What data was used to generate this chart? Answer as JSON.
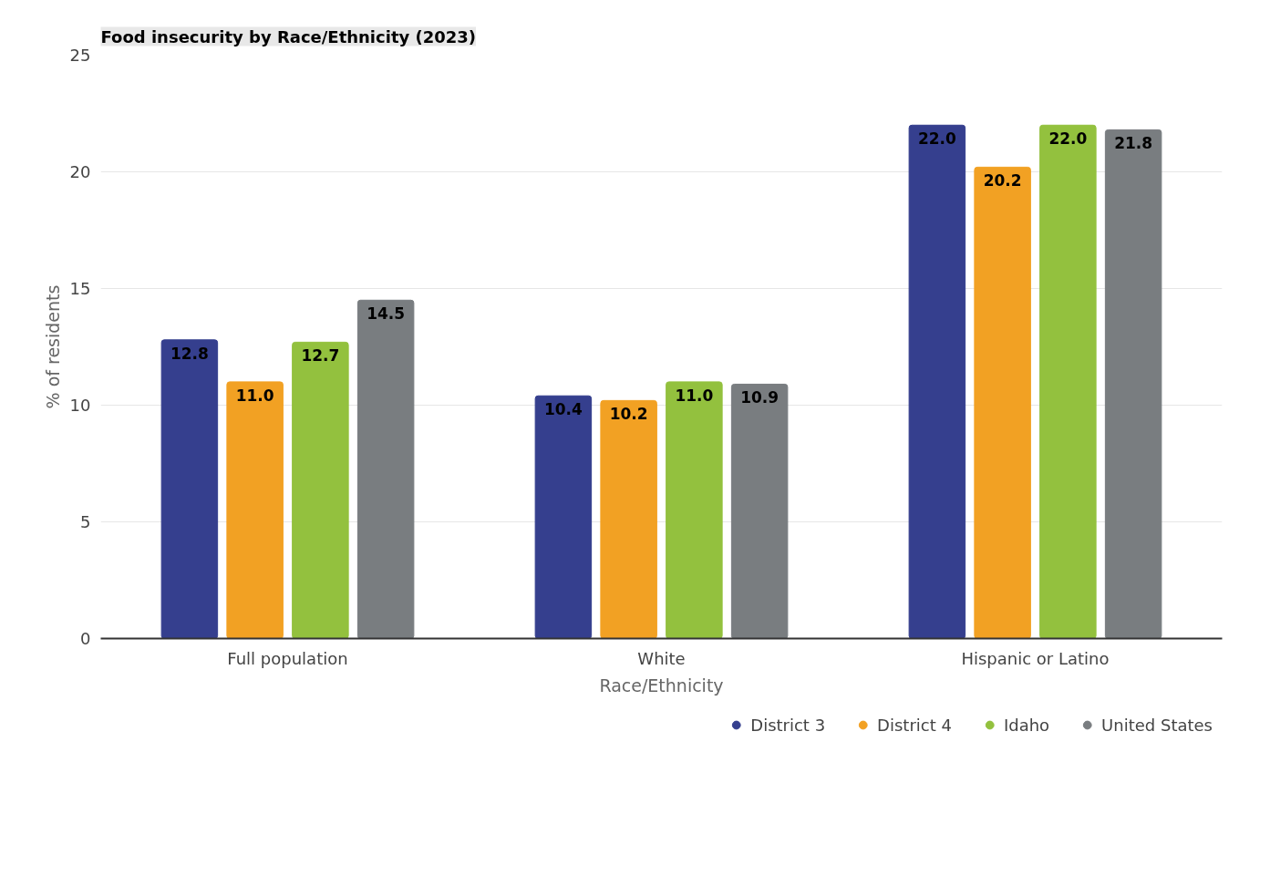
{
  "chart_data": {
    "type": "bar",
    "title": "Food insecurity by Race/Ethnicity (2023)",
    "xlabel": "Race/Ethnicity",
    "ylabel": "% of residents",
    "categories": [
      "Full population",
      "White",
      "Hispanic or Latino"
    ],
    "series": [
      {
        "name": "District 3",
        "color": "#353f8e",
        "values": [
          12.8,
          10.4,
          22.0
        ],
        "value_labels": [
          "12.8",
          "10.4",
          "22.0"
        ]
      },
      {
        "name": "District 4",
        "color": "#f2a123",
        "values": [
          11.0,
          10.2,
          20.2
        ],
        "value_labels": [
          "11.0",
          "10.2",
          "20.2"
        ]
      },
      {
        "name": "Idaho",
        "color": "#93c13e",
        "values": [
          12.7,
          11.0,
          22.0
        ],
        "value_labels": [
          "12.7",
          "11.0",
          "22.0"
        ]
      },
      {
        "name": "United States",
        "color": "#797d80",
        "values": [
          14.5,
          10.9,
          21.8
        ],
        "value_labels": [
          "14.5",
          "10.9",
          "21.8"
        ]
      }
    ],
    "ylim": [
      0,
      25
    ],
    "yticks": [
      0,
      5,
      10,
      15,
      20,
      25
    ],
    "grid": "y",
    "legend": "bottom right"
  }
}
